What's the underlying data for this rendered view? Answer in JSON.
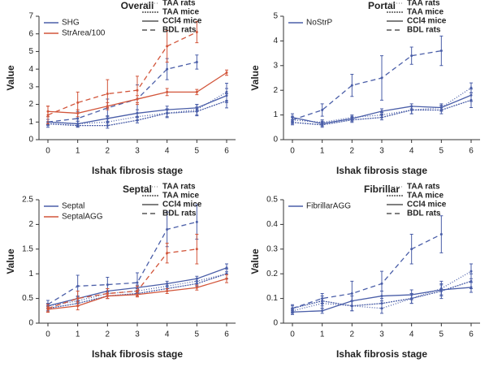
{
  "chart_data": [
    {
      "type": "line",
      "title": "Overall",
      "xlabel": "Ishak fibrosis stage",
      "ylabel": "Value",
      "x": [
        0,
        1,
        2,
        3,
        4,
        5,
        6
      ],
      "xlim": [
        -0.3,
        6.3
      ],
      "xticks": [
        0,
        1,
        2,
        3,
        4,
        5,
        6
      ],
      "ylim": [
        0,
        7
      ],
      "yticks": [
        0,
        1,
        2,
        3,
        4,
        5,
        6,
        7
      ],
      "styles": [
        {
          "name": "TAA rats",
          "dash": "1,2",
          "color": "#999999"
        },
        {
          "name": "TAA mice",
          "dash": "2,1",
          "color": "#333333"
        },
        {
          "name": "CCl4 mice",
          "dash": "none",
          "color": "#333333"
        },
        {
          "name": "BDL rats",
          "dash": "6,4",
          "color": "#333333"
        }
      ],
      "series": [
        {
          "name": "SHG",
          "color": "#4a5ea8",
          "lines": [
            {
              "values": [
                1.0,
                0.9,
                1.0,
                1.3,
                1.5,
                1.7,
                2.7
              ],
              "errors": [
                0.15,
                0.15,
                0.2,
                0.2,
                0.25,
                0.3,
                0.5
              ]
            },
            {
              "values": [
                0.9,
                0.8,
                0.8,
                1.1,
                1.5,
                1.6,
                2.2
              ],
              "errors": [
                0.1,
                0.1,
                0.15,
                0.15,
                0.2,
                0.25,
                0.4
              ]
            },
            {
              "values": [
                1.0,
                0.9,
                1.2,
                1.5,
                1.7,
                1.8,
                2.5
              ],
              "errors": [
                0.15,
                0.15,
                0.15,
                0.2,
                0.2,
                0.2,
                0.4
              ]
            },
            {
              "values": [
                1.0,
                1.2,
                1.8,
                2.3,
                4.0,
                4.4,
                null
              ],
              "errors": [
                0.3,
                0.4,
                0.5,
                0.8,
                0.6,
                0.4,
                null
              ]
            }
          ]
        },
        {
          "name": "StrArea/100",
          "color": "#d2553a",
          "lines": [
            null,
            null,
            {
              "values": [
                1.6,
                1.5,
                1.9,
                2.3,
                2.7,
                2.7,
                3.8
              ],
              "errors": [
                0.3,
                0.2,
                0.2,
                0.2,
                0.2,
                0.15,
                0.15
              ]
            },
            {
              "values": [
                1.4,
                2.1,
                2.6,
                2.8,
                5.3,
                6.1,
                null
              ],
              "errors": [
                0.5,
                0.6,
                0.8,
                0.8,
                0.9,
                0.6,
                null
              ]
            }
          ]
        }
      ]
    },
    {
      "type": "line",
      "title": "Portal",
      "xlabel": "Ishak fibrosis stage",
      "ylabel": "Value",
      "x": [
        0,
        1,
        2,
        3,
        4,
        5,
        6
      ],
      "xlim": [
        -0.3,
        6.3
      ],
      "xticks": [
        0,
        1,
        2,
        3,
        4,
        5,
        6
      ],
      "ylim": [
        0,
        5
      ],
      "yticks": [
        0,
        1,
        2,
        3,
        4,
        5
      ],
      "styles": [
        {
          "name": "TAA rats",
          "dash": "1,2",
          "color": "#999999"
        },
        {
          "name": "TAA mice",
          "dash": "2,1",
          "color": "#333333"
        },
        {
          "name": "CCl4 mice",
          "dash": "none",
          "color": "#333333"
        },
        {
          "name": "BDL rats",
          "dash": "6,4",
          "color": "#333333"
        }
      ],
      "series": [
        {
          "name": "NoStrP",
          "color": "#4a5ea8",
          "lines": [
            {
              "values": [
                0.8,
                0.7,
                0.9,
                1.0,
                1.2,
                1.3,
                2.1
              ],
              "errors": [
                0.1,
                0.1,
                0.1,
                0.1,
                0.15,
                0.15,
                0.2
              ]
            },
            {
              "values": [
                0.7,
                0.6,
                0.8,
                0.9,
                1.2,
                1.2,
                1.6
              ],
              "errors": [
                0.1,
                0.1,
                0.1,
                0.1,
                0.15,
                0.15,
                0.3
              ]
            },
            {
              "values": [
                0.9,
                0.65,
                0.85,
                1.15,
                1.35,
                1.3,
                1.8
              ],
              "errors": [
                0.15,
                0.1,
                0.1,
                0.1,
                0.1,
                0.1,
                0.25
              ]
            },
            {
              "values": [
                0.8,
                1.2,
                2.2,
                2.5,
                3.4,
                3.6,
                null
              ],
              "errors": [
                0.15,
                0.25,
                0.45,
                0.9,
                0.35,
                0.6,
                null
              ]
            }
          ]
        }
      ]
    },
    {
      "type": "line",
      "title": "Septal",
      "xlabel": "Ishak fibrosis stage",
      "ylabel": "Value",
      "x": [
        0,
        1,
        2,
        3,
        4,
        5,
        6
      ],
      "xlim": [
        -0.3,
        6.3
      ],
      "xticks": [
        0,
        1,
        2,
        3,
        4,
        5,
        6
      ],
      "ylim": [
        0,
        2.5
      ],
      "yticks": [
        0,
        0.5,
        1,
        1.5,
        2,
        2.5
      ],
      "styles": [
        {
          "name": "TAA rats",
          "dash": "1,2",
          "color": "#999999"
        },
        {
          "name": "TAA mice",
          "dash": "2,1",
          "color": "#333333"
        },
        {
          "name": "CCl4 mice",
          "dash": "none",
          "color": "#333333"
        },
        {
          "name": "BDL rats",
          "dash": "6,4",
          "color": "#333333"
        }
      ],
      "series": [
        {
          "name": "Septal",
          "color": "#4a5ea8",
          "lines": [
            {
              "values": [
                0.35,
                0.45,
                0.6,
                0.65,
                0.75,
                0.85,
                1.0
              ],
              "errors": [
                0.05,
                0.05,
                0.05,
                0.05,
                0.05,
                0.05,
                0.1
              ]
            },
            {
              "values": [
                0.3,
                0.4,
                0.55,
                0.6,
                0.7,
                0.8,
                1.0
              ],
              "errors": [
                0.05,
                0.05,
                0.05,
                0.05,
                0.05,
                0.05,
                0.1
              ]
            },
            {
              "values": [
                0.35,
                0.5,
                0.65,
                0.72,
                0.8,
                0.9,
                1.12
              ],
              "errors": [
                0.05,
                0.05,
                0.05,
                0.05,
                0.05,
                0.05,
                0.08
              ]
            },
            {
              "values": [
                0.38,
                0.75,
                0.78,
                0.82,
                1.9,
                2.05,
                null
              ],
              "errors": [
                0.08,
                0.22,
                0.15,
                0.2,
                0.35,
                0.35,
                null
              ]
            }
          ]
        },
        {
          "name": "SeptalAGG",
          "color": "#d2553a",
          "lines": [
            null,
            null,
            {
              "values": [
                0.28,
                0.35,
                0.55,
                0.58,
                0.65,
                0.72,
                0.9
              ],
              "errors": [
                0.05,
                0.08,
                0.05,
                0.05,
                0.05,
                0.05,
                0.08
              ]
            },
            {
              "values": [
                0.3,
                0.5,
                0.6,
                0.65,
                1.42,
                1.5,
                null
              ],
              "errors": [
                0.08,
                0.15,
                0.1,
                0.1,
                0.2,
                0.3,
                null
              ]
            }
          ]
        }
      ]
    },
    {
      "type": "line",
      "title": "Fibrillar",
      "xlabel": "Ishak fibrosis stage",
      "ylabel": "Value",
      "x": [
        0,
        1,
        2,
        3,
        4,
        5,
        6
      ],
      "xlim": [
        -0.3,
        6.3
      ],
      "xticks": [
        0,
        1,
        2,
        3,
        4,
        5,
        6
      ],
      "ylim": [
        0,
        0.5
      ],
      "yticks": [
        0,
        0.1,
        0.2,
        0.3,
        0.4,
        0.5
      ],
      "styles": [
        {
          "name": "TAA rats",
          "dash": "1,2",
          "color": "#999999"
        },
        {
          "name": "TAA mice",
          "dash": "2,1",
          "color": "#333333"
        },
        {
          "name": "CCl4 mice",
          "dash": "none",
          "color": "#333333"
        },
        {
          "name": "BDL rats",
          "dash": "6,4",
          "color": "#333333"
        }
      ],
      "series": [
        {
          "name": "FibrillarAGG",
          "color": "#4a5ea8",
          "lines": [
            {
              "values": [
                0.05,
                0.08,
                0.07,
                0.06,
                0.1,
                0.14,
                0.21
              ],
              "errors": [
                0.01,
                0.02,
                0.02,
                0.02,
                0.02,
                0.03,
                0.03
              ]
            },
            {
              "values": [
                0.06,
                0.09,
                0.07,
                0.08,
                0.1,
                0.13,
                0.17
              ],
              "errors": [
                0.01,
                0.02,
                0.02,
                0.02,
                0.02,
                0.03,
                0.03
              ]
            },
            {
              "values": [
                0.045,
                0.05,
                0.09,
                0.11,
                0.115,
                0.135,
                0.145
              ],
              "errors": [
                0.01,
                0.01,
                0.02,
                0.02,
                0.02,
                0.02,
                0.02
              ]
            },
            {
              "values": [
                0.06,
                0.1,
                0.12,
                0.16,
                0.3,
                0.36,
                null
              ],
              "errors": [
                0.015,
                0.02,
                0.05,
                0.05,
                0.06,
                0.075,
                null
              ]
            }
          ]
        }
      ]
    }
  ]
}
